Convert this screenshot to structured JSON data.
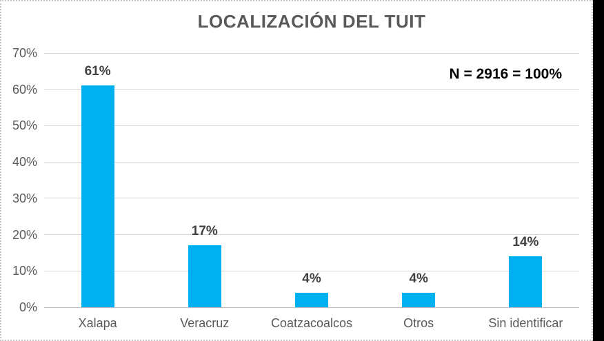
{
  "window": {
    "background_color": "#000000",
    "chart_background_color": "#ffffff",
    "chart_border_color": "#c6c6c6"
  },
  "chart": {
    "title": "LOCALIZACIÓN DEL TUIT",
    "annotation": "N = 2916 = 100%"
  },
  "chart_data": {
    "type": "bar",
    "title": "LOCALIZACIÓN DEL TUIT",
    "annotation": "N = 2916 = 100%",
    "categories": [
      "Xalapa",
      "Veracruz",
      "Coatzacoalcos",
      "Otros",
      "Sin identificar"
    ],
    "values": [
      61,
      17,
      4,
      4,
      14
    ],
    "value_labels": [
      "61%",
      "17%",
      "4%",
      "4%",
      "14%"
    ],
    "unit": "%",
    "ylim": [
      0,
      70
    ],
    "yticks": [
      0,
      10,
      20,
      30,
      40,
      50,
      60,
      70
    ],
    "ytick_labels": [
      "0%",
      "10%",
      "20%",
      "30%",
      "40%",
      "50%",
      "60%",
      "70%"
    ],
    "xlabel": "",
    "ylabel": "",
    "grid": true,
    "legend": false,
    "legend_position": "none",
    "bar_color": "#00B0F0",
    "gridline_color": "#d9d9d9",
    "axis_line_color": "#bfbfbf",
    "title_color": "#595959",
    "value_label_color": "#404040",
    "tick_label_color": "#595959"
  }
}
